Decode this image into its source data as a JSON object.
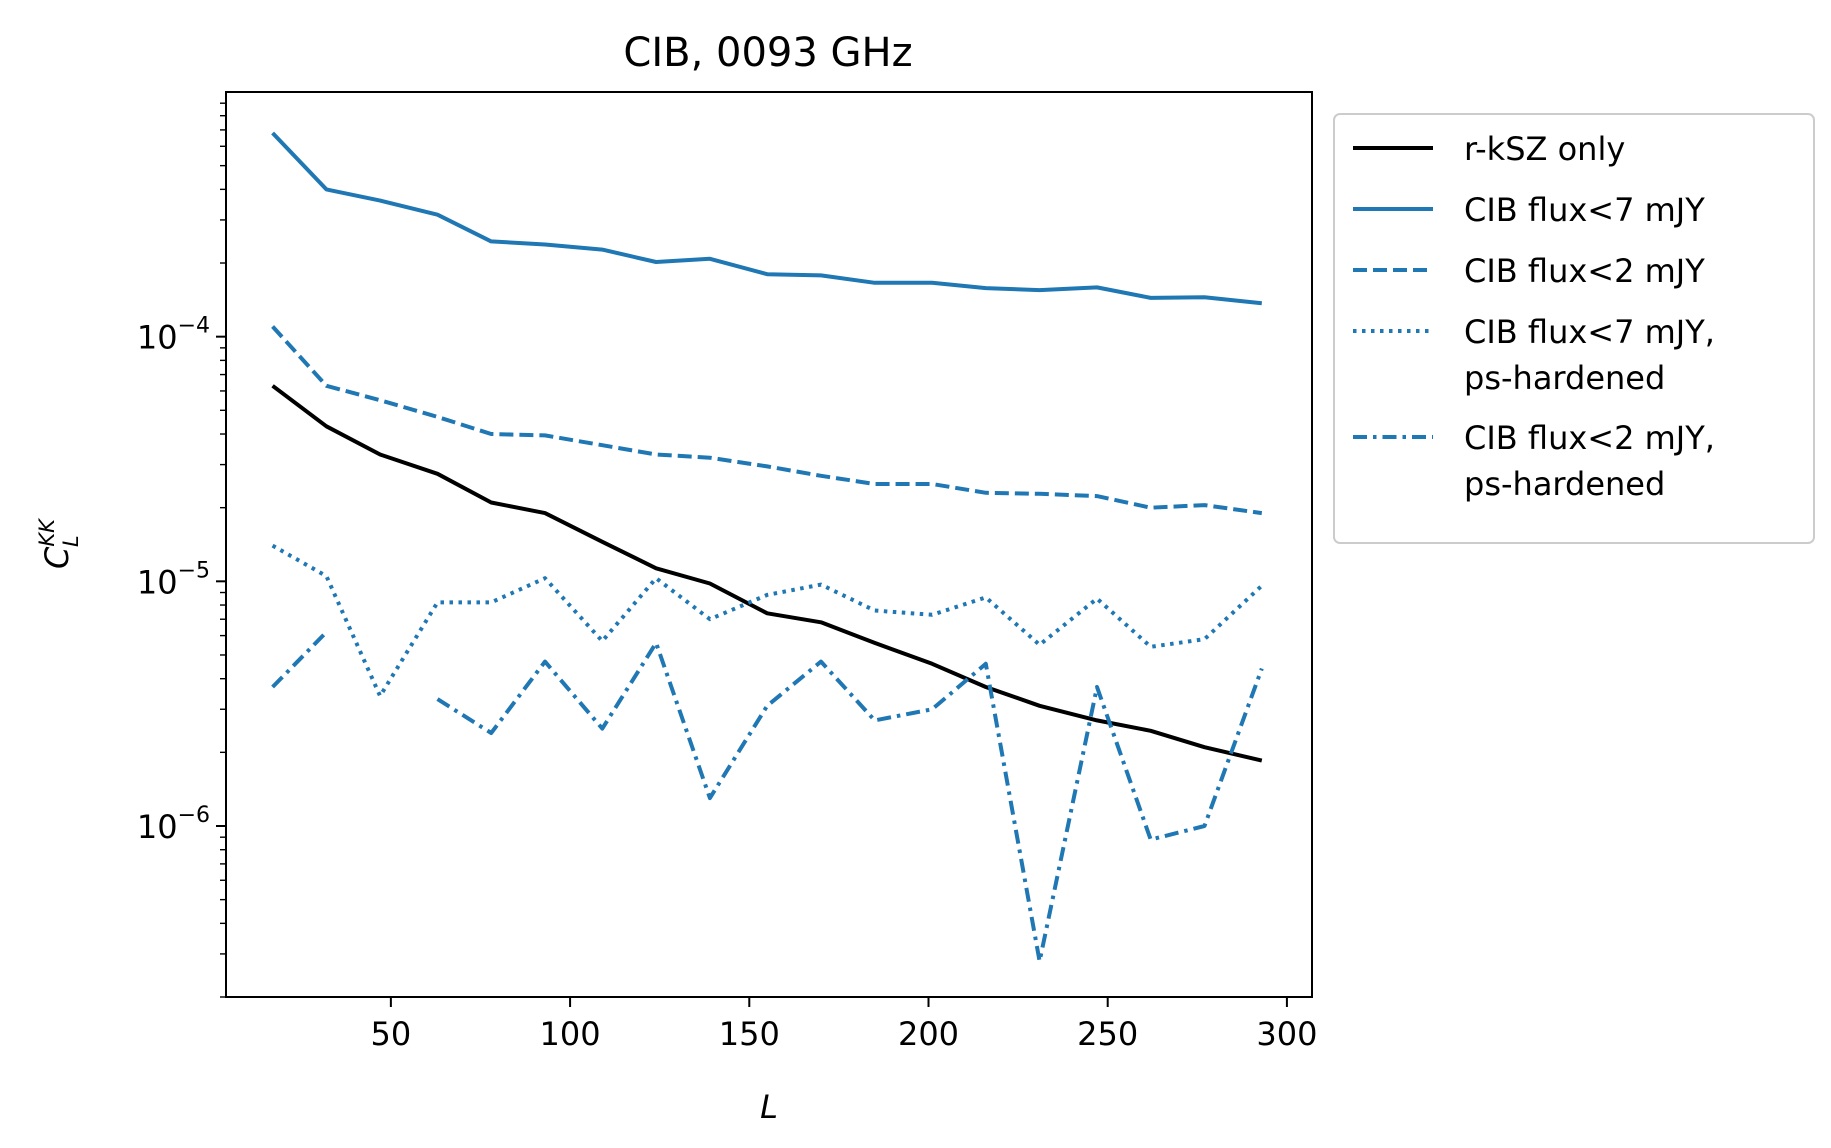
{
  "chart_data": {
    "type": "line",
    "title": "CIB, 0093 GHz",
    "xlabel": "L",
    "ylabel": {
      "base": "C",
      "sup": "KK",
      "sub": "L"
    },
    "xscale": "linear",
    "yscale": "log",
    "xlim": [
      4,
      307
    ],
    "ylim": [
      2e-07,
      0.001
    ],
    "xticks": [
      50,
      100,
      150,
      200,
      250,
      300
    ],
    "yticks": [
      {
        "value": 1e-06,
        "mantissa": "10",
        "exponent": "−6"
      },
      {
        "value": 1e-05,
        "mantissa": "10",
        "exponent": "−5"
      },
      {
        "value": 0.0001,
        "mantissa": "10",
        "exponent": "−4"
      }
    ],
    "grid": false,
    "legend_position": "outside-upper-right",
    "x": [
      17,
      32,
      47,
      63,
      78,
      93,
      109,
      124,
      139,
      155,
      170,
      185,
      201,
      216,
      231,
      247,
      262,
      277,
      293
    ],
    "series": [
      {
        "name": "r-kSZ only",
        "color": "#000000",
        "dash": "solid",
        "values": [
          6.3e-05,
          4.3e-05,
          3.3e-05,
          2.75e-05,
          2.1e-05,
          1.9e-05,
          1.45e-05,
          1.13e-05,
          9.8e-06,
          7.4e-06,
          6.8e-06,
          5.6e-06,
          4.6e-06,
          3.7e-06,
          3.1e-06,
          2.7e-06,
          2.45e-06,
          2.1e-06,
          1.85e-06
        ]
      },
      {
        "name": "CIB flux<7 mJY",
        "color": "#1f77b4",
        "dash": "solid",
        "values": [
          0.00068,
          0.0004,
          0.00036,
          0.000315,
          0.000245,
          0.000238,
          0.000227,
          0.000202,
          0.000208,
          0.00018,
          0.000178,
          0.000166,
          0.000166,
          0.000158,
          0.000155,
          0.000159,
          0.000144,
          0.000145,
          0.000137
        ]
      },
      {
        "name": "CIB flux<2 mJY",
        "color": "#1f77b4",
        "dash": "dashed",
        "values": [
          0.00011,
          6.3e-05,
          5.5e-05,
          4.7e-05,
          4e-05,
          3.95e-05,
          3.6e-05,
          3.3e-05,
          3.2e-05,
          2.95e-05,
          2.7e-05,
          2.5e-05,
          2.5e-05,
          2.3e-05,
          2.28e-05,
          2.23e-05,
          2e-05,
          2.05e-05,
          1.9e-05
        ]
      },
      {
        "name": "CIB flux<7 mJY,\nps-hardened",
        "color": "#1f77b4",
        "dash": "dotted",
        "values": [
          1.4e-05,
          1.05e-05,
          3.4e-06,
          8.2e-06,
          8.2e-06,
          1.03e-05,
          5.7e-06,
          1.03e-05,
          7e-06,
          8.8e-06,
          9.7e-06,
          7.6e-06,
          7.3e-06,
          8.6e-06,
          5.5e-06,
          8.5e-06,
          5.4e-06,
          5.8e-06,
          9.6e-06
        ]
      },
      {
        "name": "CIB flux<2 mJY,\nps-hardened",
        "color": "#1f77b4",
        "dash": "dashdot",
        "values": [
          3.7e-06,
          6.2e-06,
          null,
          3.3e-06,
          2.4e-06,
          4.7e-06,
          2.5e-06,
          5.6e-06,
          1.3e-06,
          3.1e-06,
          4.7e-06,
          2.7e-06,
          3e-06,
          4.6e-06,
          2.8e-07,
          3.7e-06,
          8.8e-07,
          1e-06,
          4.4e-06
        ]
      }
    ]
  }
}
